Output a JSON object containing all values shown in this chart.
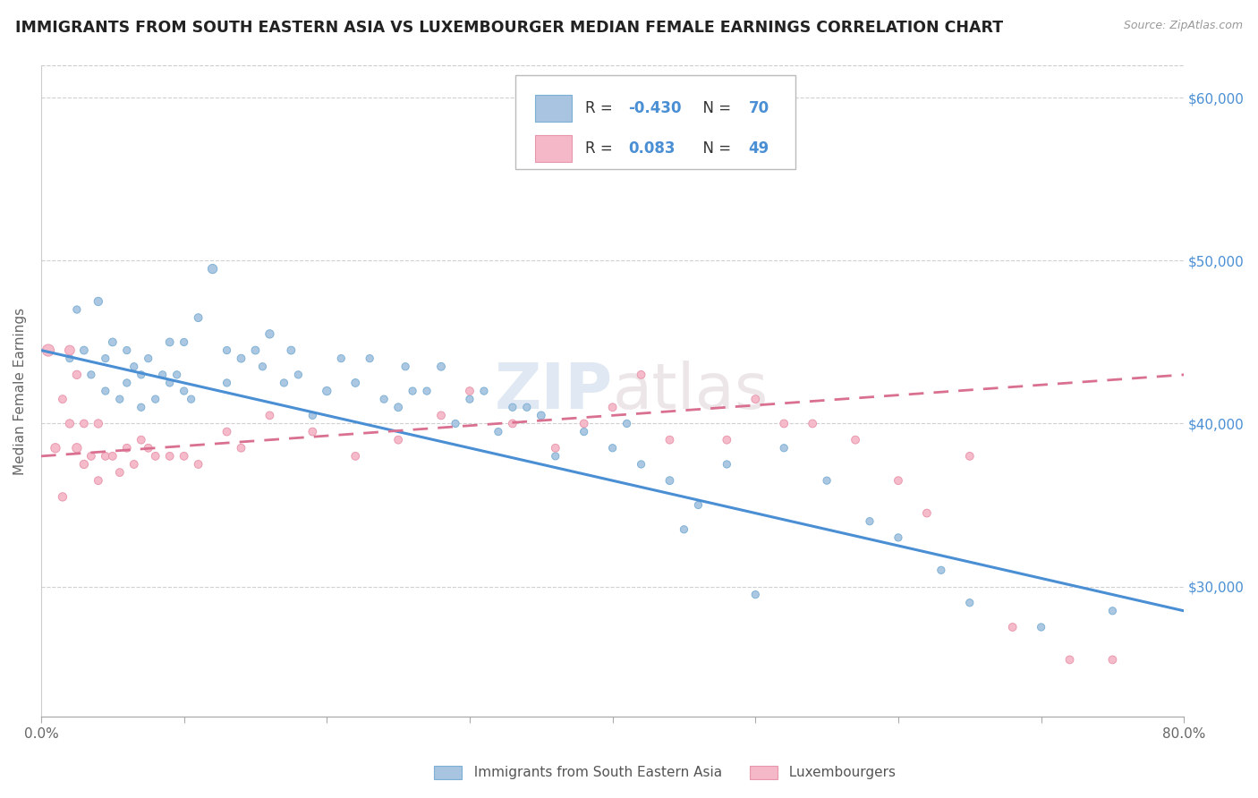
{
  "title": "IMMIGRANTS FROM SOUTH EASTERN ASIA VS LUXEMBOURGER MEDIAN FEMALE EARNINGS CORRELATION CHART",
  "source": "Source: ZipAtlas.com",
  "ylabel": "Median Female Earnings",
  "xlim": [
    0.0,
    0.8
  ],
  "ylim": [
    22000,
    62000
  ],
  "xticks": [
    0.0,
    0.1,
    0.2,
    0.3,
    0.4,
    0.5,
    0.6,
    0.7,
    0.8
  ],
  "xtick_labels": [
    "0.0%",
    "",
    "",
    "",
    "",
    "",
    "",
    "",
    "80.0%"
  ],
  "ytick_labels": [
    "$30,000",
    "$40,000",
    "$50,000",
    "$60,000"
  ],
  "yticks": [
    30000,
    40000,
    50000,
    60000
  ],
  "blue_color": "#a8c4e0",
  "blue_edge": "#7bafd4",
  "pink_color": "#f5b8c8",
  "pink_edge": "#e896ac",
  "trend_blue": "#4a8fd4",
  "trend_pink": "#d97090",
  "watermark": "ZIPatlas",
  "blue_dots_x": [
    0.02,
    0.025,
    0.03,
    0.035,
    0.04,
    0.045,
    0.045,
    0.05,
    0.055,
    0.06,
    0.06,
    0.065,
    0.07,
    0.07,
    0.075,
    0.08,
    0.085,
    0.09,
    0.09,
    0.095,
    0.1,
    0.1,
    0.105,
    0.11,
    0.12,
    0.13,
    0.13,
    0.14,
    0.15,
    0.155,
    0.16,
    0.17,
    0.175,
    0.18,
    0.19,
    0.2,
    0.21,
    0.22,
    0.23,
    0.24,
    0.25,
    0.255,
    0.26,
    0.27,
    0.28,
    0.29,
    0.3,
    0.31,
    0.32,
    0.33,
    0.34,
    0.35,
    0.36,
    0.38,
    0.4,
    0.41,
    0.42,
    0.44,
    0.45,
    0.46,
    0.48,
    0.5,
    0.52,
    0.55,
    0.58,
    0.6,
    0.63,
    0.65,
    0.7,
    0.75
  ],
  "blue_dots_y": [
    44000,
    47000,
    44500,
    43000,
    47500,
    42000,
    44000,
    45000,
    41500,
    42500,
    44500,
    43500,
    43000,
    41000,
    44000,
    41500,
    43000,
    42500,
    45000,
    43000,
    42000,
    45000,
    41500,
    46500,
    49500,
    42500,
    44500,
    44000,
    44500,
    43500,
    45500,
    42500,
    44500,
    43000,
    40500,
    42000,
    44000,
    42500,
    44000,
    41500,
    41000,
    43500,
    42000,
    42000,
    43500,
    40000,
    41500,
    42000,
    39500,
    41000,
    41000,
    40500,
    38000,
    39500,
    38500,
    40000,
    37500,
    36500,
    33500,
    35000,
    37500,
    29500,
    38500,
    36500,
    34000,
    33000,
    31000,
    29000,
    27500,
    28500
  ],
  "blue_dots_size": [
    35,
    35,
    40,
    35,
    45,
    35,
    35,
    40,
    35,
    35,
    35,
    35,
    35,
    35,
    35,
    35,
    35,
    35,
    40,
    35,
    35,
    35,
    35,
    40,
    55,
    35,
    35,
    40,
    40,
    35,
    45,
    35,
    40,
    35,
    35,
    45,
    35,
    40,
    35,
    35,
    40,
    35,
    35,
    35,
    40,
    35,
    35,
    35,
    35,
    35,
    35,
    40,
    35,
    35,
    35,
    35,
    35,
    40,
    35,
    35,
    35,
    35,
    35,
    35,
    35,
    35,
    35,
    35,
    35,
    35
  ],
  "pink_dots_x": [
    0.005,
    0.01,
    0.015,
    0.015,
    0.02,
    0.02,
    0.025,
    0.025,
    0.03,
    0.03,
    0.035,
    0.04,
    0.04,
    0.045,
    0.05,
    0.055,
    0.06,
    0.065,
    0.07,
    0.075,
    0.08,
    0.09,
    0.1,
    0.11,
    0.13,
    0.14,
    0.16,
    0.19,
    0.22,
    0.25,
    0.28,
    0.3,
    0.33,
    0.36,
    0.38,
    0.4,
    0.42,
    0.44,
    0.48,
    0.5,
    0.52,
    0.54,
    0.57,
    0.6,
    0.62,
    0.65,
    0.68,
    0.72,
    0.75
  ],
  "pink_dots_y": [
    44500,
    38500,
    35500,
    41500,
    44500,
    40000,
    43000,
    38500,
    40000,
    37500,
    38000,
    40000,
    36500,
    38000,
    38000,
    37000,
    38500,
    37500,
    39000,
    38500,
    38000,
    38000,
    38000,
    37500,
    39500,
    38500,
    40500,
    39500,
    38000,
    39000,
    40500,
    42000,
    40000,
    38500,
    40000,
    41000,
    43000,
    39000,
    39000,
    41500,
    40000,
    40000,
    39000,
    36500,
    34500,
    38000,
    27500,
    25500,
    25500
  ],
  "pink_dots_size": [
    90,
    55,
    45,
    40,
    60,
    45,
    45,
    55,
    40,
    45,
    40,
    45,
    40,
    40,
    40,
    40,
    40,
    40,
    40,
    40,
    40,
    40,
    40,
    40,
    40,
    40,
    40,
    40,
    40,
    40,
    40,
    40,
    40,
    40,
    40,
    40,
    40,
    40,
    40,
    40,
    40,
    40,
    40,
    40,
    40,
    40,
    40,
    40,
    40
  ],
  "blue_trend_x": [
    0.0,
    0.8
  ],
  "blue_trend_y": [
    44500,
    28500
  ],
  "pink_trend_x": [
    0.0,
    0.8
  ],
  "pink_trend_y": [
    38000,
    43000
  ],
  "legend_blue_r": "-0.430",
  "legend_blue_n": "70",
  "legend_pink_r": "0.083",
  "legend_pink_n": "49"
}
